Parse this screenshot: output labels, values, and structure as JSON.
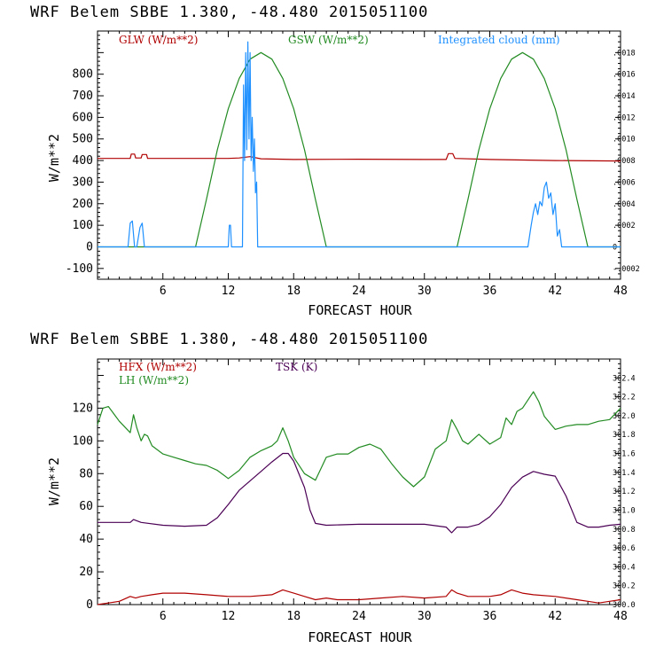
{
  "chart_data": [
    {
      "type": "line",
      "title": "WRF   Belem SBBE      1.380, -48.480  2015051100",
      "xlabel": "FORECAST HOUR",
      "ylabel": "W/m**2",
      "xlim": [
        0,
        48
      ],
      "xticks": [
        6,
        12,
        18,
        24,
        30,
        36,
        42,
        48
      ],
      "ylim": [
        -150,
        1000
      ],
      "yticks": [
        -100,
        0,
        100,
        200,
        300,
        400,
        500,
        600,
        700,
        800
      ],
      "right_axis": {
        "ylim": [
          -0.0003,
          0.002
        ],
        "ticks": [
          -0.0002,
          0,
          0.0002,
          0.0004,
          0.0006,
          0.0008,
          0.001,
          0.0012,
          0.0014,
          0.0016,
          0.0018
        ],
        "labels": [
          "-.0002",
          "0",
          ".0002",
          ".0004",
          ".0006",
          ".0008",
          ".0010",
          ".0012",
          ".0014",
          ".0016",
          ".0018"
        ]
      },
      "series": [
        {
          "name": "GLW (W/m**2)",
          "color": "#b00000",
          "axis": "left",
          "x": [
            0,
            3,
            3.1,
            3.4,
            3.5,
            4.0,
            4.1,
            4.5,
            4.6,
            12,
            13,
            14,
            15,
            18,
            24,
            30,
            32,
            32.2,
            32.6,
            32.8,
            36,
            42,
            48
          ],
          "y": [
            410,
            410,
            430,
            430,
            412,
            412,
            428,
            428,
            410,
            410,
            412,
            418,
            408,
            405,
            406,
            405,
            405,
            432,
            432,
            410,
            405,
            400,
            398
          ]
        },
        {
          "name": "GSW (W/m**2)",
          "color": "#228b22",
          "axis": "left",
          "x": [
            0,
            9.0,
            10,
            11,
            12,
            13,
            14,
            15,
            16,
            17,
            18,
            19,
            20,
            21.0,
            33.0,
            34,
            35,
            36,
            37,
            38,
            39,
            40,
            41,
            42,
            43,
            44,
            45.0,
            48
          ],
          "y": [
            0,
            0,
            220,
            450,
            640,
            780,
            870,
            900,
            870,
            780,
            640,
            450,
            220,
            0,
            0,
            220,
            450,
            640,
            780,
            870,
            900,
            870,
            780,
            640,
            450,
            220,
            0,
            0
          ]
        },
        {
          "name": "Integrated cloud (mm)",
          "color": "#1e90ff",
          "axis": "right",
          "x": [
            0,
            2.8,
            3.0,
            3.2,
            3.4,
            3.6,
            3.9,
            4.1,
            4.3,
            4.5,
            12.0,
            12.1,
            12.2,
            12.3,
            13.3,
            13.4,
            13.5,
            13.6,
            13.7,
            13.8,
            13.9,
            14.0,
            14.1,
            14.2,
            14.3,
            14.4,
            14.5,
            14.6,
            14.7,
            14.8,
            14.9,
            32.8,
            33.3,
            39.5,
            39.8,
            40.0,
            40.2,
            40.4,
            40.6,
            40.8,
            41.0,
            41.2,
            41.4,
            41.6,
            41.8,
            42.0,
            42.2,
            42.4,
            42.6,
            48
          ],
          "y": [
            0,
            0,
            0.00022,
            0.00024,
            0,
            0,
            0.00018,
            0.00022,
            0,
            0,
            0,
            0.0002,
            0.0002,
            0,
            0,
            0.0015,
            0.0008,
            0.0018,
            0.0009,
            0.0019,
            0.001,
            0.0018,
            0.0008,
            0.0012,
            0.0007,
            0.001,
            0.0005,
            0.0006,
            0,
            0,
            0,
            0,
            0,
            0,
            0.0002,
            0.00032,
            0.0004,
            0.0003,
            0.00042,
            0.00038,
            0.00055,
            0.0006,
            0.00045,
            0.0005,
            0.0003,
            0.0004,
            0.0001,
            0.00016,
            0,
            0
          ]
        }
      ],
      "legend": "top"
    },
    {
      "type": "line",
      "title": "WRF   Belem SBBE      1.380, -48.480  2015051100",
      "xlabel": "FORECAST HOUR",
      "ylabel": "W/m**2",
      "xlim": [
        0,
        48
      ],
      "xticks": [
        6,
        12,
        18,
        24,
        30,
        36,
        42,
        48
      ],
      "ylim": [
        0,
        150
      ],
      "yticks": [
        0,
        20,
        40,
        60,
        80,
        100,
        120
      ],
      "right_axis": {
        "ylim": [
          300.0,
          302.6
        ],
        "ticks": [
          300.0,
          300.2,
          300.4,
          300.6,
          300.8,
          301.0,
          301.2,
          301.4,
          301.6,
          301.8,
          302.0,
          302.2,
          302.4
        ],
        "labels": [
          "300.0",
          "300.2",
          "300.4",
          "300.6",
          "300.8",
          "301.0",
          "301.2",
          "301.4",
          "301.6",
          "301.8",
          "302.0",
          "302.2",
          "302.4"
        ]
      },
      "series": [
        {
          "name": "HFX (W/m**2)",
          "color": "#b00000",
          "axis": "left",
          "x": [
            0,
            1,
            2,
            3,
            3.5,
            4,
            5,
            6,
            8,
            10,
            12,
            14,
            16,
            17,
            18,
            19,
            20,
            21,
            22,
            24,
            26,
            28,
            30,
            32,
            32.5,
            33,
            34,
            36,
            37,
            38,
            39,
            40,
            42,
            44,
            45,
            46,
            47,
            48
          ],
          "y": [
            0,
            1,
            2,
            5,
            4,
            5,
            6,
            7,
            7,
            6,
            5,
            5,
            6,
            9,
            7,
            5,
            3,
            4,
            3,
            3,
            4,
            5,
            4,
            5,
            9,
            7,
            5,
            5,
            6,
            9,
            7,
            6,
            5,
            3,
            2,
            1,
            2,
            3
          ]
        },
        {
          "name": "LH  (W/m**2)",
          "color": "#228b22",
          "axis": "left",
          "x": [
            0,
            0.5,
            1,
            2,
            3,
            3.3,
            3.6,
            4,
            4.3,
            4.6,
            5,
            6,
            7,
            8,
            9,
            10,
            11,
            12,
            13,
            14,
            15,
            16,
            16.5,
            17,
            17.5,
            18,
            19,
            20,
            21,
            22,
            23,
            24,
            25,
            26,
            27,
            28,
            29,
            30,
            31,
            32,
            32.5,
            33,
            33.5,
            34,
            35,
            36,
            37,
            37.5,
            38,
            38.5,
            39,
            40,
            40.5,
            41,
            42,
            43,
            44,
            45,
            46,
            47,
            48
          ],
          "y": [
            110,
            120,
            121,
            112,
            105,
            116,
            108,
            100,
            104,
            103,
            97,
            92,
            90,
            88,
            86,
            85,
            82,
            77,
            82,
            90,
            94,
            97,
            100,
            108,
            100,
            90,
            80,
            76,
            90,
            92,
            92,
            96,
            98,
            95,
            86,
            78,
            72,
            78,
            95,
            100,
            113,
            107,
            100,
            98,
            104,
            98,
            102,
            114,
            110,
            118,
            120,
            130,
            124,
            115,
            107,
            109,
            110,
            110,
            112,
            113,
            120
          ]
        },
        {
          "name": "TSK (K)",
          "color": "#4b0055",
          "axis": "right",
          "x": [
            0,
            2,
            3,
            3.3,
            4,
            6,
            8,
            10,
            11,
            12,
            13,
            14,
            15,
            16,
            17,
            17.5,
            18,
            19,
            19.5,
            20,
            21,
            24,
            27,
            30,
            32,
            32.5,
            33,
            34,
            35,
            36,
            37,
            38,
            39,
            40,
            41,
            42,
            43,
            44,
            45,
            46,
            47,
            48
          ],
          "y": [
            300.87,
            300.87,
            300.87,
            300.9,
            300.87,
            300.84,
            300.83,
            300.84,
            300.92,
            301.06,
            301.21,
            301.31,
            301.41,
            301.51,
            301.6,
            301.6,
            301.52,
            301.24,
            301.0,
            300.86,
            300.84,
            300.85,
            300.85,
            300.85,
            300.82,
            300.76,
            300.82,
            300.82,
            300.85,
            300.93,
            301.06,
            301.24,
            301.35,
            301.41,
            301.38,
            301.36,
            301.15,
            300.87,
            300.82,
            300.82,
            300.84,
            300.85
          ]
        }
      ],
      "legend": "top-left"
    }
  ]
}
